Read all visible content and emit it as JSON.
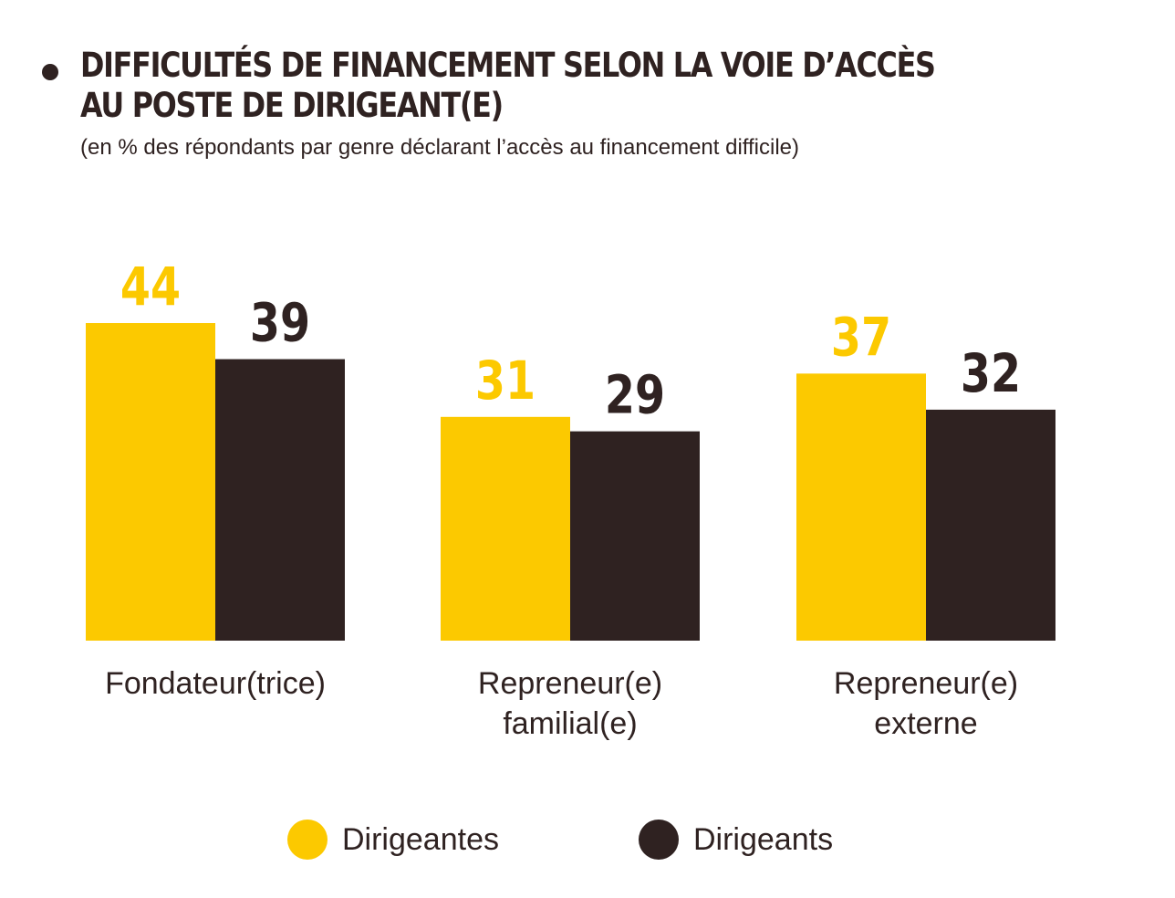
{
  "header": {
    "title_line1": "DIFFICULTÉS DE FINANCEMENT SELON LA VOIE D’ACCÈS",
    "title_line2": "AU POSTE DE DIRIGEANT(E)",
    "subtitle": "(en % des répondants par genre déclarant l’accès au financement difficile)"
  },
  "colors": {
    "dirigeantes": "#fcc900",
    "dirigeants": "#2f2221"
  },
  "chart_data": {
    "type": "bar",
    "title": "DIFFICULTÉS DE FINANCEMENT SELON LA VOIE D’ACCÈS AU POSTE DE DIRIGEANT(E)",
    "subtitle": "(en % des répondants par genre déclarant l’accès au financement difficile)",
    "categories": [
      [
        "Fondateur(trice)"
      ],
      [
        "Repreneur(e)",
        "familial(e)"
      ],
      [
        "Repreneur(e)",
        "externe"
      ]
    ],
    "series": [
      {
        "name": "Dirigeantes",
        "values": [
          44,
          31,
          37
        ]
      },
      {
        "name": "Dirigeants",
        "values": [
          39,
          29,
          32
        ]
      }
    ],
    "ylim": [
      0,
      44
    ],
    "grid": false,
    "legend_position": "bottom-center"
  }
}
